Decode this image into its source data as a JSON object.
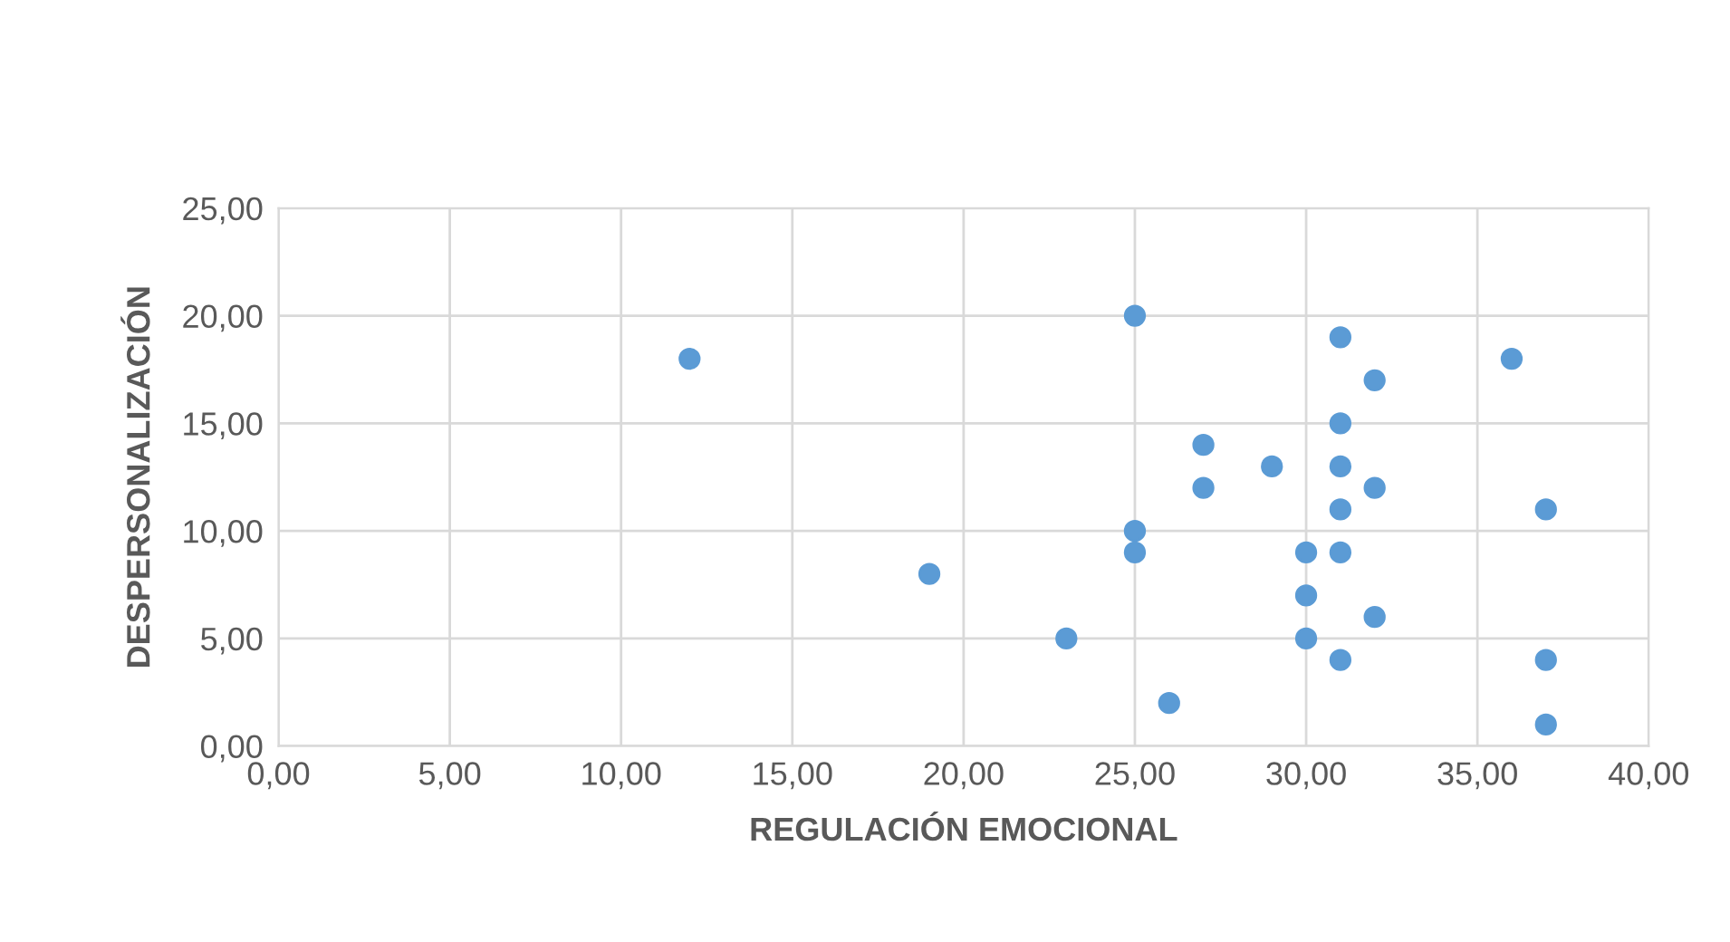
{
  "chart_data": {
    "type": "scatter",
    "xlabel": "REGULACIÓN EMOCIONAL",
    "ylabel": "DESPERSONALIZACIÓN",
    "x": [
      12,
      19,
      23,
      25,
      25,
      25,
      26,
      27,
      27,
      29,
      30,
      30,
      30,
      31,
      31,
      31,
      31,
      31,
      31,
      32,
      32,
      32,
      36,
      37,
      37,
      37
    ],
    "series": [
      {
        "color": "#5b9bd5",
        "values": [
          18,
          8,
          5,
          20,
          10,
          9,
          2,
          14,
          12,
          13,
          9,
          7,
          5,
          19,
          15,
          13,
          11,
          9,
          4,
          17,
          12,
          6,
          18,
          11,
          4,
          1
        ]
      }
    ],
    "xlim": [
      0,
      40
    ],
    "ylim": [
      0,
      25
    ],
    "xticks": [
      {
        "value": 0,
        "label": "0,00"
      },
      {
        "value": 5,
        "label": "5,00"
      },
      {
        "value": 10,
        "label": "10,00"
      },
      {
        "value": 15,
        "label": "15,00"
      },
      {
        "value": 20,
        "label": "20,00"
      },
      {
        "value": 25,
        "label": "25,00"
      },
      {
        "value": 30,
        "label": "30,00"
      },
      {
        "value": 35,
        "label": "35,00"
      },
      {
        "value": 40,
        "label": "40,00"
      }
    ],
    "yticks": [
      {
        "value": 0,
        "label": "0,00"
      },
      {
        "value": 5,
        "label": "5,00"
      },
      {
        "value": 10,
        "label": "10,00"
      },
      {
        "value": 15,
        "label": "15,00"
      },
      {
        "value": 20,
        "label": "20,00"
      },
      {
        "value": 25,
        "label": "25,00"
      }
    ],
    "grid": true,
    "marker": "circle"
  }
}
